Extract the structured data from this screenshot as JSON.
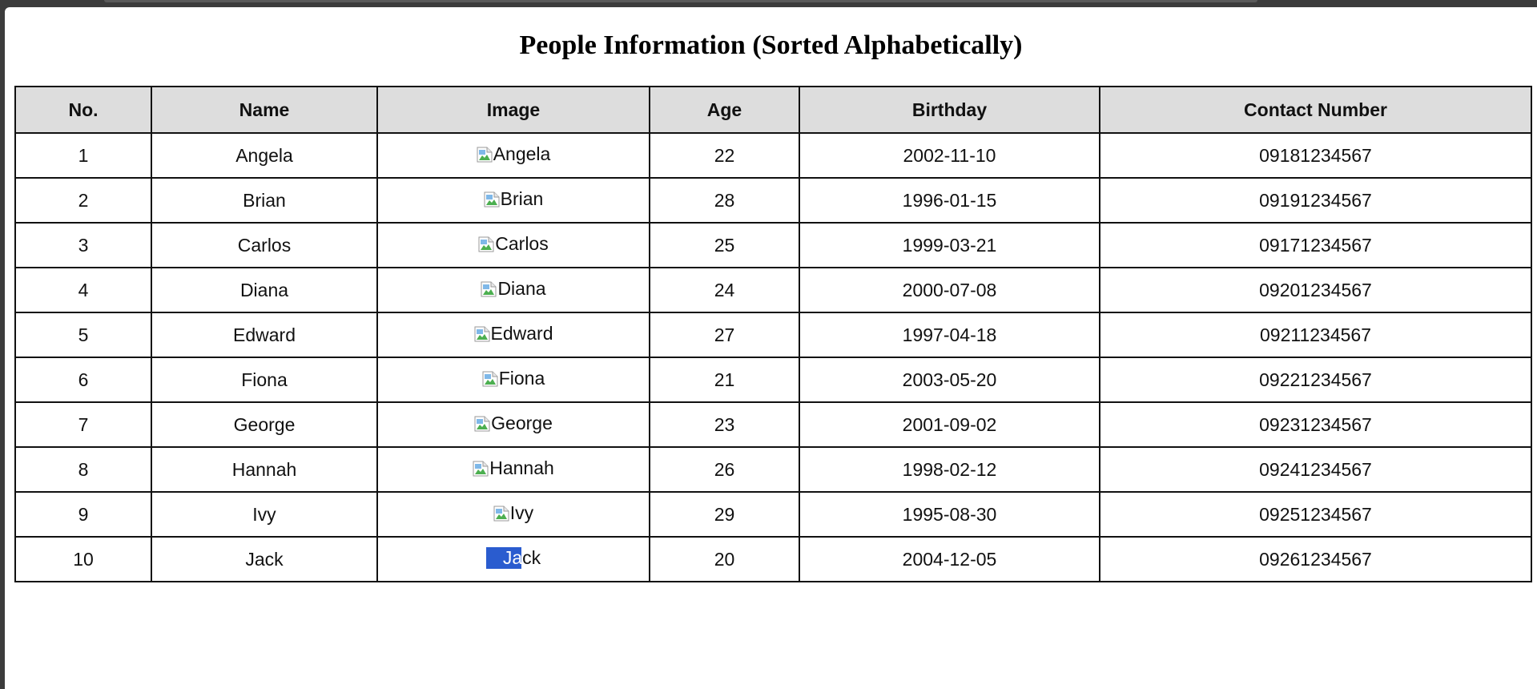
{
  "title": "People Information (Sorted Alphabetically)",
  "columns": [
    "No.",
    "Name",
    "Image",
    "Age",
    "Birthday",
    "Contact Number"
  ],
  "rows": [
    {
      "no": "1",
      "name": "Angela",
      "image_alt": "Angela",
      "age": "22",
      "birthday": "2002-11-10",
      "contact": "09181234567"
    },
    {
      "no": "2",
      "name": "Brian",
      "image_alt": "Brian",
      "age": "28",
      "birthday": "1996-01-15",
      "contact": "09191234567"
    },
    {
      "no": "3",
      "name": "Carlos",
      "image_alt": "Carlos",
      "age": "25",
      "birthday": "1999-03-21",
      "contact": "09171234567"
    },
    {
      "no": "4",
      "name": "Diana",
      "image_alt": "Diana",
      "age": "24",
      "birthday": "2000-07-08",
      "contact": "09201234567"
    },
    {
      "no": "5",
      "name": "Edward",
      "image_alt": "Edward",
      "age": "27",
      "birthday": "1997-04-18",
      "contact": "09211234567"
    },
    {
      "no": "6",
      "name": "Fiona",
      "image_alt": "Fiona",
      "age": "21",
      "birthday": "2003-05-20",
      "contact": "09221234567"
    },
    {
      "no": "7",
      "name": "George",
      "image_alt": "George",
      "age": "23",
      "birthday": "2001-09-02",
      "contact": "09231234567"
    },
    {
      "no": "8",
      "name": "Hannah",
      "image_alt": "Hannah",
      "age": "26",
      "birthday": "1998-02-12",
      "contact": "09241234567"
    },
    {
      "no": "9",
      "name": "Ivy",
      "image_alt": "Ivy",
      "age": "29",
      "birthday": "1995-08-30",
      "contact": "09251234567"
    },
    {
      "no": "10",
      "name": "Jack",
      "image_alt": "Jack",
      "age": "20",
      "birthday": "2004-12-05",
      "contact": "09261234567",
      "selected_text": "Ja",
      "rest_text": "ck"
    }
  ]
}
